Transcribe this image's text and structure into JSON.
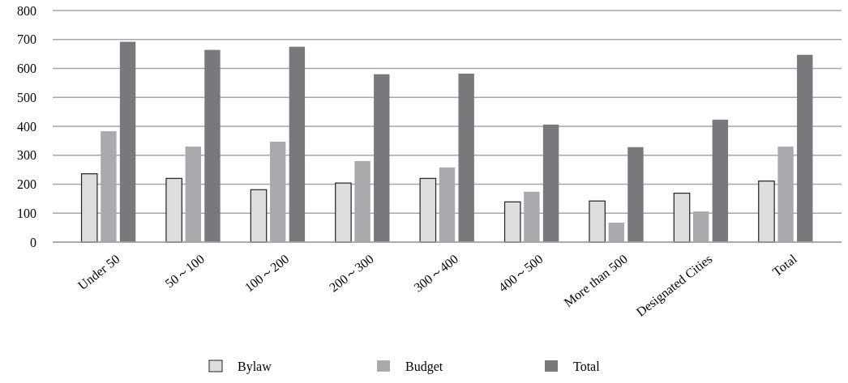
{
  "chart_data": {
    "type": "bar",
    "categories": [
      "Under 50",
      "50～100",
      "100～200",
      "200～300",
      "300～400",
      "400～500",
      "More than 500",
      "Designated Cities",
      "Total"
    ],
    "series": [
      {
        "name": "Bylaw",
        "color": "#dcdddf",
        "values": [
          236,
          220,
          181,
          204,
          220,
          139,
          142,
          169,
          211
        ]
      },
      {
        "name": "Budget",
        "color": "#a9aaad",
        "values": [
          383,
          330,
          347,
          280,
          258,
          174,
          67,
          106,
          330
        ]
      },
      {
        "name": "Total",
        "color": "#78797d",
        "values": [
          692,
          664,
          675,
          580,
          582,
          406,
          328,
          423,
          647
        ]
      }
    ],
    "ylim": [
      0,
      800
    ],
    "yticks": [
      0,
      100,
      200,
      300,
      400,
      500,
      600,
      700,
      800
    ],
    "grid": "y",
    "legend": "bottom"
  }
}
